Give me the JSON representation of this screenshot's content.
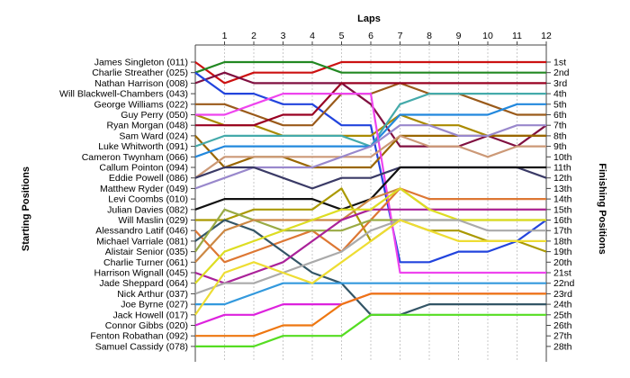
{
  "chart_data": {
    "type": "line",
    "title": "Laps",
    "ylabel_left": "Starting Positions",
    "ylabel_right": "Finishing Positions",
    "x": [
      0,
      1,
      2,
      3,
      4,
      5,
      6,
      7,
      8,
      9,
      10,
      11,
      12
    ],
    "xticks": [
      "1",
      "2",
      "3",
      "4",
      "5",
      "6",
      "7",
      "8",
      "9",
      "10",
      "11",
      "12"
    ],
    "starting_labels": [
      "James Singleton (011)",
      "Charlie Streather (025)",
      "Nathan Harrison (008)",
      "Will Blackwell-Chambers (043)",
      "George Williams (022)",
      "Guy Perry (050)",
      "Ryan Morgan (048)",
      "Sam Ward (024)",
      "Luke Whitworth (091)",
      "Cameron Twynham (066)",
      "Callum Pointon (094)",
      "Eddie Powell (086)",
      "Matthew Ryder (049)",
      "Levi Coombs (010)",
      "Julian Davies (082)",
      "Will Maslin (029)",
      "Alessandro Latif (046)",
      "Michael Varriale (081)",
      "Alistair Senior (035)",
      "Charlie Turner (061)",
      "Harrison Wignall (045)",
      "Jade Sheppard (064)",
      "Nick Arthur (037)",
      "Joe Byrne (027)",
      "Jack Howell (017)",
      "Connor Gibbs (020)",
      "Fenton Robathan (092)",
      "Samuel Cassidy (078)"
    ],
    "finishing_labels": [
      "1st",
      "2nd",
      "3rd",
      "4th",
      "5th",
      "6th",
      "7th",
      "8th",
      "9th",
      "10th",
      "11th",
      "12th",
      "13th",
      "14th",
      "15th",
      "16th",
      "17th",
      "18th",
      "19th",
      "20th",
      "21st",
      "22nd",
      "23rd",
      "24th",
      "25th",
      "26th",
      "27th",
      "28th"
    ],
    "ylim": [
      1,
      28
    ],
    "grid": "vertical",
    "series": [
      {
        "color": "#cc1111",
        "values": [
          1,
          3,
          2,
          2,
          2,
          1,
          1,
          1,
          1,
          1,
          1,
          1,
          1
        ]
      },
      {
        "color": "#228822",
        "values": [
          2,
          1,
          1,
          1,
          1,
          2,
          2,
          2,
          2,
          2,
          2,
          2,
          2
        ]
      },
      {
        "color": "#801040",
        "values": [
          3,
          2,
          3,
          3,
          3,
          3,
          5,
          9,
          9,
          9,
          8,
          9,
          7
        ]
      },
      {
        "color": "#2244dd",
        "values": [
          2,
          4,
          4,
          5,
          5,
          7,
          7,
          20,
          20,
          19,
          19,
          18,
          16
        ]
      },
      {
        "color": "#9a5a1a",
        "values": [
          5,
          5,
          6,
          7,
          7,
          4,
          4,
          3,
          4,
          4,
          5,
          6,
          6
        ]
      },
      {
        "color": "#aa8a00",
        "values": [
          6,
          7,
          7,
          8,
          8,
          8,
          8,
          6,
          7,
          7,
          8,
          8,
          8
        ]
      },
      {
        "color": "#990022",
        "values": [
          7,
          7,
          7,
          6,
          6,
          3,
          3,
          3,
          3,
          3,
          3,
          3,
          3
        ]
      },
      {
        "color": "#996600",
        "values": [
          8,
          11,
          10,
          10,
          11,
          11,
          11,
          8,
          8,
          8,
          8,
          8,
          8
        ]
      },
      {
        "color": "#44aaaa",
        "values": [
          9,
          8,
          8,
          8,
          8,
          8,
          9,
          5,
          4,
          4,
          4,
          4,
          4
        ]
      },
      {
        "color": "#2288dd",
        "values": [
          10,
          9,
          9,
          9,
          9,
          9,
          9,
          6,
          6,
          6,
          6,
          5,
          5
        ]
      },
      {
        "color": "#ee44ee",
        "values": [
          6,
          6,
          5,
          4,
          4,
          4,
          4,
          21,
          21,
          21,
          21,
          21,
          21
        ]
      },
      {
        "color": "#cc9977",
        "values": [
          12,
          10,
          10,
          10,
          10,
          10,
          10,
          8,
          9,
          9,
          10,
          9,
          9
        ]
      },
      {
        "color": "#9988cc",
        "values": [
          13,
          12,
          11,
          11,
          11,
          10,
          9,
          7,
          7,
          8,
          8,
          7,
          7
        ]
      },
      {
        "color": "#3a3a66",
        "values": [
          12,
          11,
          11,
          12,
          13,
          12,
          12,
          11,
          11,
          11,
          11,
          11,
          12
        ]
      },
      {
        "color": "#111111",
        "values": [
          15,
          14,
          14,
          14,
          14,
          15,
          14,
          11,
          11,
          11,
          11,
          11,
          11
        ]
      },
      {
        "color": "#aa9900",
        "values": [
          16,
          16,
          15,
          15,
          15,
          13,
          18,
          16,
          17,
          17,
          18,
          18,
          19
        ]
      },
      {
        "color": "#dd7733",
        "values": [
          17,
          20,
          19,
          18,
          17,
          19,
          16,
          13,
          14,
          14,
          14,
          14,
          14
        ]
      },
      {
        "color": "#335566",
        "values": [
          18,
          16,
          17,
          19,
          21,
          22,
          25,
          25,
          24,
          24,
          24,
          24,
          24
        ]
      },
      {
        "color": "#99aa44",
        "values": [
          19,
          15,
          16,
          17,
          17,
          17,
          16,
          16,
          16,
          16,
          16,
          16,
          16
        ]
      },
      {
        "color": "#cc8844",
        "values": [
          20,
          17,
          16,
          16,
          16,
          16,
          14,
          13,
          15,
          15,
          15,
          15,
          15
        ]
      },
      {
        "color": "#aa2299",
        "values": [
          21,
          22,
          21,
          20,
          18,
          16,
          15,
          15,
          15,
          15,
          15,
          15,
          15
        ]
      },
      {
        "color": "#dddd22",
        "values": [
          22,
          19,
          18,
          17,
          16,
          15,
          15,
          13,
          15,
          16,
          16,
          16,
          16
        ]
      },
      {
        "color": "#aaaaaa",
        "values": [
          23,
          22,
          22,
          21,
          20,
          19,
          17,
          16,
          16,
          16,
          17,
          17,
          17
        ]
      },
      {
        "color": "#3399dd",
        "values": [
          24,
          24,
          23,
          22,
          22,
          22,
          22,
          22,
          22,
          22,
          22,
          22,
          22
        ]
      },
      {
        "color": "#eedd33",
        "values": [
          25,
          21,
          20,
          21,
          22,
          20,
          18,
          16,
          17,
          18,
          18,
          18,
          18
        ]
      },
      {
        "color": "#dd22dd",
        "values": [
          26,
          25,
          25,
          24,
          24,
          24,
          23,
          23,
          23,
          23,
          23,
          23,
          23
        ]
      },
      {
        "color": "#ee7711",
        "values": [
          27,
          27,
          27,
          26,
          26,
          24,
          23,
          23,
          23,
          23,
          23,
          23,
          23
        ]
      },
      {
        "color": "#55dd22",
        "values": [
          28,
          28,
          28,
          27,
          27,
          27,
          25,
          25,
          25,
          25,
          25,
          25,
          25
        ]
      }
    ]
  }
}
